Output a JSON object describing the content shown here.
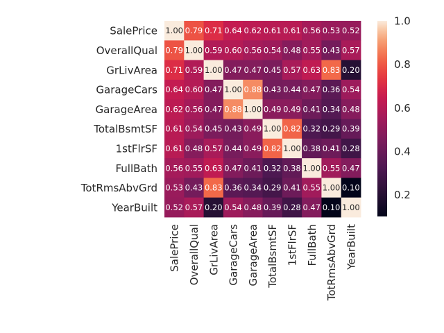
{
  "chart_data": {
    "type": "heatmap",
    "title": "",
    "xlabel": "",
    "ylabel": "",
    "row_labels": [
      "SalePrice",
      "OverallQual",
      "GrLivArea",
      "GarageCars",
      "GarageArea",
      "TotalBsmtSF",
      "1stFlrSF",
      "FullBath",
      "TotRmsAbvGrd",
      "YearBuilt"
    ],
    "col_labels": [
      "SalePrice",
      "OverallQual",
      "GrLivArea",
      "GarageCars",
      "GarageArea",
      "TotalBsmtSF",
      "1stFlrSF",
      "FullBath",
      "TotRmsAbvGrd",
      "YearBuilt"
    ],
    "values": [
      [
        1.0,
        0.79,
        0.71,
        0.64,
        0.62,
        0.61,
        0.61,
        0.56,
        0.53,
        0.52
      ],
      [
        0.79,
        1.0,
        0.59,
        0.6,
        0.56,
        0.54,
        0.48,
        0.55,
        0.43,
        0.57
      ],
      [
        0.71,
        0.59,
        1.0,
        0.47,
        0.47,
        0.45,
        0.57,
        0.63,
        0.83,
        0.2
      ],
      [
        0.64,
        0.6,
        0.47,
        1.0,
        0.88,
        0.43,
        0.44,
        0.47,
        0.36,
        0.54
      ],
      [
        0.62,
        0.56,
        0.47,
        0.88,
        1.0,
        0.49,
        0.49,
        0.41,
        0.34,
        0.48
      ],
      [
        0.61,
        0.54,
        0.45,
        0.43,
        0.49,
        1.0,
        0.82,
        0.32,
        0.29,
        0.39
      ],
      [
        0.61,
        0.48,
        0.57,
        0.44,
        0.49,
        0.82,
        1.0,
        0.38,
        0.41,
        0.28
      ],
      [
        0.56,
        0.55,
        0.63,
        0.47,
        0.41,
        0.32,
        0.38,
        1.0,
        0.55,
        0.47
      ],
      [
        0.53,
        0.43,
        0.83,
        0.36,
        0.34,
        0.29,
        0.41,
        0.55,
        1.0,
        0.1
      ],
      [
        0.52,
        0.57,
        0.2,
        0.54,
        0.48,
        0.39,
        0.28,
        0.47,
        0.1,
        1.0
      ]
    ],
    "value_format": "2 decimals",
    "annotated": true,
    "colormap": "rocket",
    "colorbar": {
      "min": 0.1,
      "max": 1.0,
      "ticks": [
        "0.2",
        "0.4",
        "0.6",
        "0.8",
        "1.0"
      ],
      "placement": "right"
    },
    "grid": false
  },
  "colors": {
    "background": "#ffffff",
    "label": "#262626",
    "annot_dark_text": "#262626",
    "annot_light_text": "#ffffff"
  }
}
